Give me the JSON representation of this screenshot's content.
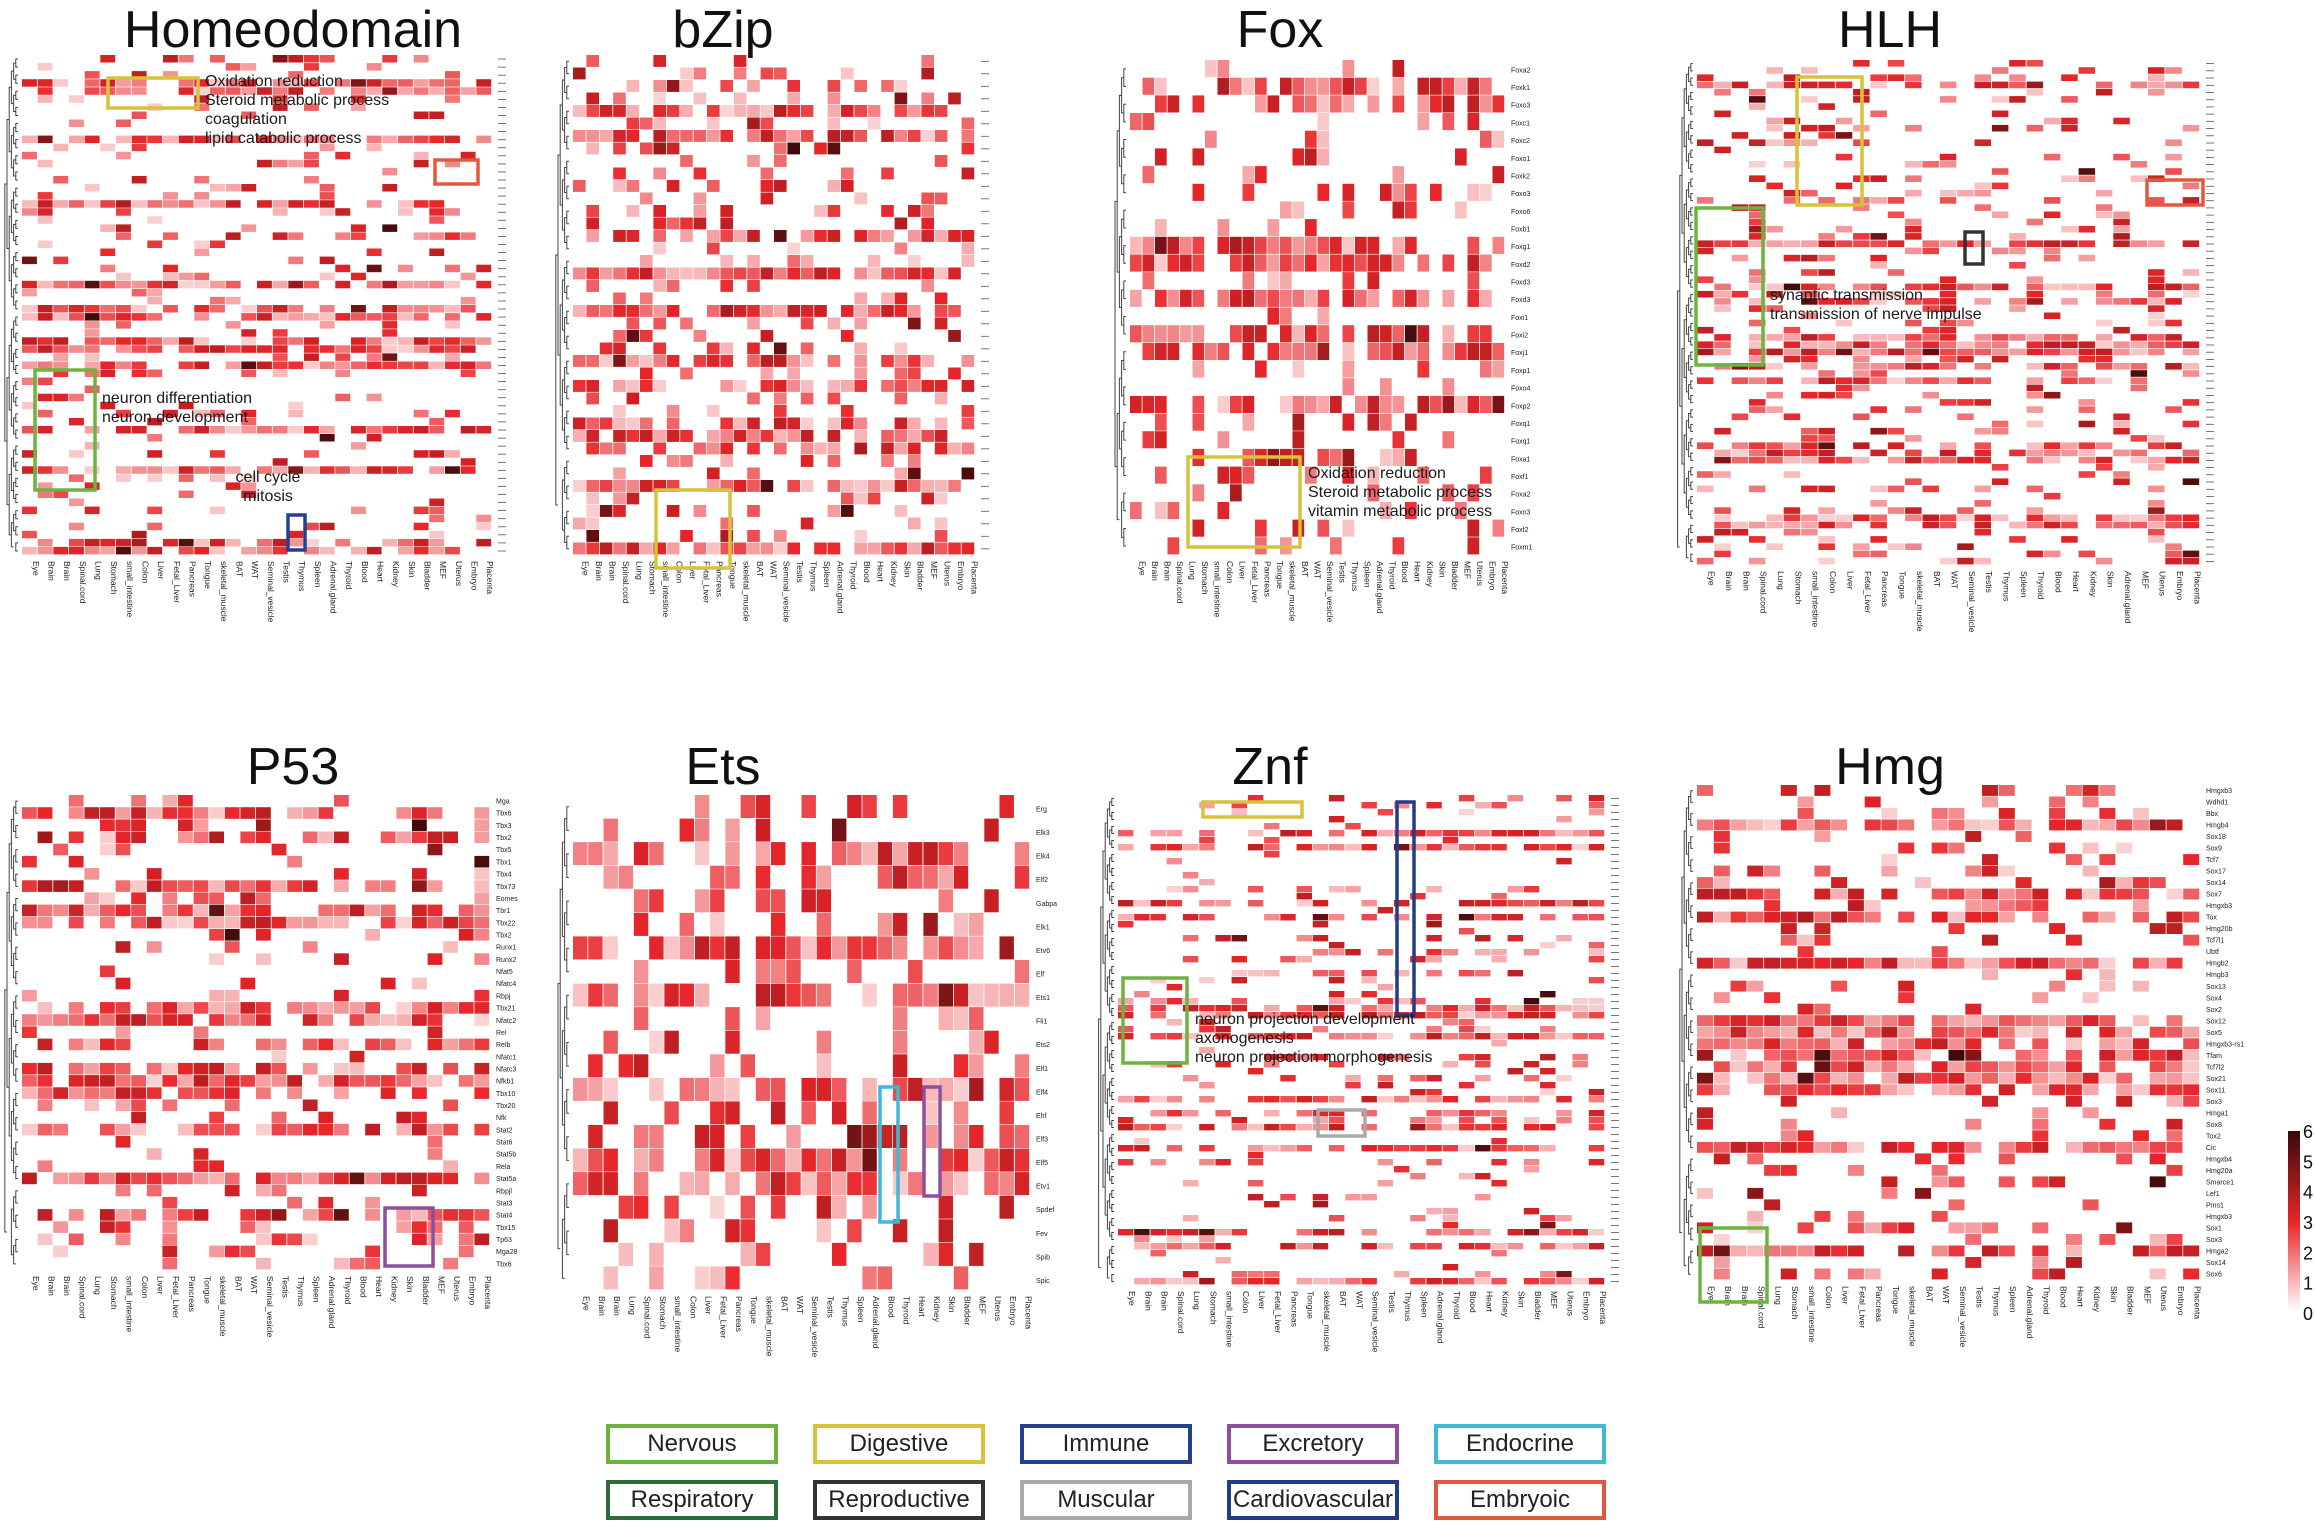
{
  "figure": {
    "colors": {
      "nervous": "#6db33f",
      "digestive": "#d8c23a",
      "immune": "#25408f",
      "excretory": "#8e4f9e",
      "endocrine": "#3fb9d6",
      "respiratory": "#2e6b3a",
      "reproductive": "#333333",
      "muscular": "#aaaaaa",
      "cardiovascular": "#243b87",
      "embryoic": "#e2583e",
      "heat_low": "#ffffff",
      "heat_mid": "#e8262a",
      "heat_high": "#3a0a0a"
    }
  },
  "chart_data": [
    {
      "type": "heatmap",
      "title": "Homeodomain",
      "tissues": [
        "Eye",
        "Brain",
        "Brain",
        "Spinal.cord",
        "Lung",
        "Stomach",
        "small_intestine",
        "Colon",
        "Liver",
        "Fetal_Liver",
        "Pancreas",
        "Tongue",
        "skeletal_muscle",
        "BAT",
        "WAT",
        "Seminal_vesicle",
        "Testis",
        "Thymus",
        "Spleen",
        "Adrenal.gland",
        "Thyroid",
        "Blood",
        "Heart",
        "Kidney",
        "Skin",
        "Bladder",
        "MEF",
        "Uterus",
        "Embryo",
        "Placenta"
      ],
      "annotations": [
        {
          "system": "digestive",
          "label": [
            "Oxidation reduction",
            "Steroid metabolic process",
            "coagulation",
            "lipid catabolic process"
          ]
        },
        {
          "system": "embryoic",
          "label": []
        },
        {
          "system": "nervous",
          "label": [
            "neuron differentiation",
            "neuron development"
          ]
        },
        {
          "system": "immune",
          "label": [
            "cell cycle",
            "mitosis"
          ]
        }
      ],
      "color_scale": [
        0,
        6
      ]
    },
    {
      "type": "heatmap",
      "title": "bZip",
      "tissues": [
        "Eye",
        "Brain",
        "Brain",
        "Spinal.cord",
        "Lung",
        "Stomach",
        "small_intestine",
        "Colon",
        "Liver",
        "Fetal_Liver",
        "Pancreas",
        "Tongue",
        "skeletal_muscle",
        "BAT",
        "WAT",
        "Seminal_vesicle",
        "Testis",
        "Thymus",
        "Spleen",
        "Adrenal.gland",
        "Thyroid",
        "Blood",
        "Heart",
        "Kidney",
        "Skin",
        "Bladder",
        "MEF",
        "Uterus",
        "Embryo",
        "Placenta"
      ],
      "annotations": [
        {
          "system": "digestive",
          "label": []
        }
      ],
      "color_scale": [
        0,
        6
      ]
    },
    {
      "type": "heatmap",
      "title": "Fox",
      "tissues": [
        "Eye",
        "Brain",
        "Brain",
        "Spinal.cord",
        "Lung",
        "Stomach",
        "small_intestine",
        "Colon",
        "Liver",
        "Fetal_Liver",
        "Pancreas",
        "Tongue",
        "skeletal_muscle",
        "BAT",
        "WAT",
        "Seminal_vesicle",
        "Testis",
        "Thymus",
        "Spleen",
        "Adrenal.gland",
        "Thyroid",
        "Blood",
        "Heart",
        "Kidney",
        "Skin",
        "Bladder",
        "MEF",
        "Uterus",
        "Embryo",
        "Placenta"
      ],
      "genes": [
        "Foxa2",
        "Foxk1",
        "Foxo3",
        "Foxc1",
        "Foxc2",
        "Foxo1",
        "Foxk2",
        "Foxo3",
        "Foxo6",
        "Foxb1",
        "Foxg1",
        "Foxd2",
        "Foxd3",
        "Foxd3",
        "Foxi1",
        "Foxi2",
        "Foxj1",
        "Foxp1",
        "Foxo4",
        "Foxp2",
        "Foxq1",
        "Foxq1",
        "Foxa1",
        "Foxf1",
        "Foxa2",
        "Foxn3",
        "Foxf2",
        "Foxm1"
      ],
      "annotations": [
        {
          "system": "digestive",
          "label": [
            "Oxidation reduction",
            "Steroid metabolic process",
            "vitamin metabolic process"
          ]
        }
      ],
      "color_scale": [
        0,
        6
      ]
    },
    {
      "type": "heatmap",
      "title": "HLH",
      "tissues": [
        "Eye",
        "Brain",
        "Brain",
        "Spinal.cord",
        "Lung",
        "Stomach",
        "small_intestine",
        "Colon",
        "Liver",
        "Fetal_Liver",
        "Pancreas",
        "Tongue",
        "skeletal_muscle",
        "BAT",
        "WAT",
        "Seminal_vesicle",
        "Testis",
        "Thymus",
        "Spleen",
        "Thyroid",
        "Blood",
        "Heart",
        "Kidney",
        "Skin",
        "Adrenal.gland",
        "MEF",
        "Uterus",
        "Embryo",
        "Placenta"
      ],
      "annotations": [
        {
          "system": "digestive",
          "label": []
        },
        {
          "system": "embryoic",
          "label": []
        },
        {
          "system": "nervous",
          "label": [
            "synaptic transmission",
            "transmission of nerve impulse"
          ]
        },
        {
          "system": "reproductive",
          "label": []
        }
      ],
      "color_scale": [
        0,
        6
      ]
    },
    {
      "type": "heatmap",
      "title": "P53",
      "tissues": [
        "Eye",
        "Brain",
        "Brain",
        "Spinal.cord",
        "Lung",
        "Stomach",
        "small_intestine",
        "Colon",
        "Liver",
        "Fetal_Liver",
        "Pancreas",
        "Tongue",
        "skeletal_muscle",
        "BAT",
        "WAT",
        "Seminal_vesicle",
        "Testis",
        "Thymus",
        "Spleen",
        "Adrenal.gland",
        "Thyroid",
        "Blood",
        "Heart",
        "Kidney",
        "Skin",
        "Bladder",
        "MEF",
        "Uterus",
        "Embryo",
        "Placenta"
      ],
      "genes": [
        "Mga",
        "Tbx6",
        "Tbx3",
        "Tbx2",
        "Tbx5",
        "Tbx1",
        "Tbx4",
        "Tbx73",
        "Eomes",
        "Tbr1",
        "Tbx22",
        "Tbx2",
        "Runx1",
        "Runx2",
        "Nfat5",
        "Nfatc4",
        "Rbpj",
        "Tbx21",
        "Nfatc2",
        "Rel",
        "Relb",
        "Nfatc1",
        "Nfatc3",
        "Nfkb1",
        "Tbx10",
        "Tbx20",
        "Nfk",
        "Stat2",
        "Stat6",
        "Stat5b",
        "Rela",
        "Stat5a",
        "Rbpjl",
        "Stat3",
        "Stat4",
        "Tbx15",
        "Tp63",
        "Mga28",
        "Tbx6"
      ],
      "annotations": [
        {
          "system": "excretory",
          "label": []
        }
      ],
      "color_scale": [
        0,
        6
      ]
    },
    {
      "type": "heatmap",
      "title": "Ets",
      "tissues": [
        "Eye",
        "Brain",
        "Brain",
        "Lung",
        "Spinal.cord",
        "Stomach",
        "small_intestine",
        "Colon",
        "Liver",
        "Fetal_Liver",
        "Pancreas",
        "Tongue",
        "skeletal_muscle",
        "BAT",
        "WAT",
        "Seminal_vesicle",
        "Testis",
        "Thymus",
        "Spleen",
        "Adrenal.gland",
        "Blood",
        "Thyroid",
        "Heart",
        "Kidney",
        "Skin",
        "Bladder",
        "MEF",
        "Uterus",
        "Embryo",
        "Placenta"
      ],
      "genes": [
        "Erg",
        "Elk3",
        "Elk4",
        "Elf2",
        "Gabpa",
        "Elk1",
        "Etv6",
        "Elf",
        "Ets1",
        "Fli1",
        "Ets2",
        "Elf1",
        "Elf4",
        "Ehf",
        "Elf3",
        "Elf5",
        "Etv1",
        "Spdef",
        "Fev",
        "Spib",
        "Spic"
      ],
      "annotations": [
        {
          "system": "endocrine",
          "label": []
        },
        {
          "system": "excretory",
          "label": []
        }
      ],
      "color_scale": [
        0,
        6
      ]
    },
    {
      "type": "heatmap",
      "title": "Znf",
      "tissues": [
        "Eye",
        "Brain",
        "Brain",
        "Spinal.cord",
        "Lung",
        "Stomach",
        "small_intestine",
        "Colon",
        "Liver",
        "Fetal_Liver",
        "Pancreas",
        "Tongue",
        "skeletal_muscle",
        "BAT",
        "WAT",
        "Seminal_vesicle",
        "Testis",
        "Thymus",
        "Spleen",
        "Adrenal.gland",
        "Thyroid",
        "Blood",
        "Heart",
        "Kidney",
        "Skin",
        "Bladder",
        "MEF",
        "Uterus",
        "Embryo",
        "Placenta"
      ],
      "annotations": [
        {
          "system": "digestive",
          "label": []
        },
        {
          "system": "cardiovascular",
          "label": []
        },
        {
          "system": "nervous",
          "label": [
            "neuron projection development",
            "axonogenesis",
            "neuron projection morphogenesis"
          ]
        },
        {
          "system": "muscular",
          "label": []
        }
      ],
      "color_scale": [
        0,
        6
      ]
    },
    {
      "type": "heatmap",
      "title": "Hmg",
      "tissues": [
        "Eye",
        "Brain",
        "Brain",
        "Spinal.cord",
        "Lung",
        "Stomach",
        "small_intestine",
        "Colon",
        "Liver",
        "Fetal_Liver",
        "Pancreas",
        "Tongue",
        "skeletal_muscle",
        "BAT",
        "WAT",
        "Seminal_vesicle",
        "Testis",
        "Thymus",
        "Spleen",
        "Adrenal.gland",
        "Thyroid",
        "Blood",
        "Heart",
        "Kidney",
        "Skin",
        "Bladder",
        "MEF",
        "Uterus",
        "Embryo",
        "Placenta"
      ],
      "genes": [
        "Hmgxb3",
        "Wdhd1",
        "Bbx",
        "Hmgb4",
        "Sox18",
        "Sox9",
        "Tcf7",
        "Sox17",
        "Sox14",
        "Sox7",
        "Hmgxb3",
        "Tox",
        "Hmg20b",
        "Tcf7l1",
        "Ubtf",
        "Hmgb2",
        "Hmgb3",
        "Sox13",
        "Sox4",
        "Sox2",
        "Sox12",
        "Sox5",
        "Hmgxb3-rs1",
        "Tfam",
        "Tcf7l2",
        "Sox21",
        "Sox11",
        "Sox3",
        "Hmga1",
        "Sox8",
        "Tox2",
        "Cic",
        "Hmgxb4",
        "Hmg20a",
        "Smarce1",
        "Lef1",
        "Pms1",
        "Hmgxb3",
        "Sox1",
        "Sox3",
        "Hmga2",
        "Sox14",
        "Sox6"
      ],
      "annotations": [
        {
          "system": "nervous",
          "label": []
        }
      ],
      "color_scale": [
        0,
        6
      ]
    }
  ],
  "colorbar": {
    "ticks": [
      "6",
      "5",
      "4",
      "3",
      "2",
      "1",
      "0"
    ],
    "range": [
      0,
      6
    ]
  },
  "legend": [
    {
      "key": "nervous",
      "label": "Nervous"
    },
    {
      "key": "digestive",
      "label": "Digestive"
    },
    {
      "key": "immune",
      "label": "Immune"
    },
    {
      "key": "excretory",
      "label": "Excretory"
    },
    {
      "key": "endocrine",
      "label": "Endocrine"
    },
    {
      "key": "respiratory",
      "label": "Respiratory"
    },
    {
      "key": "reproductive",
      "label": "Reproductive"
    },
    {
      "key": "muscular",
      "label": "Muscular"
    },
    {
      "key": "cardiovascular",
      "label": "Cardiovascular"
    },
    {
      "key": "embryoic",
      "label": "Embryoic"
    }
  ]
}
